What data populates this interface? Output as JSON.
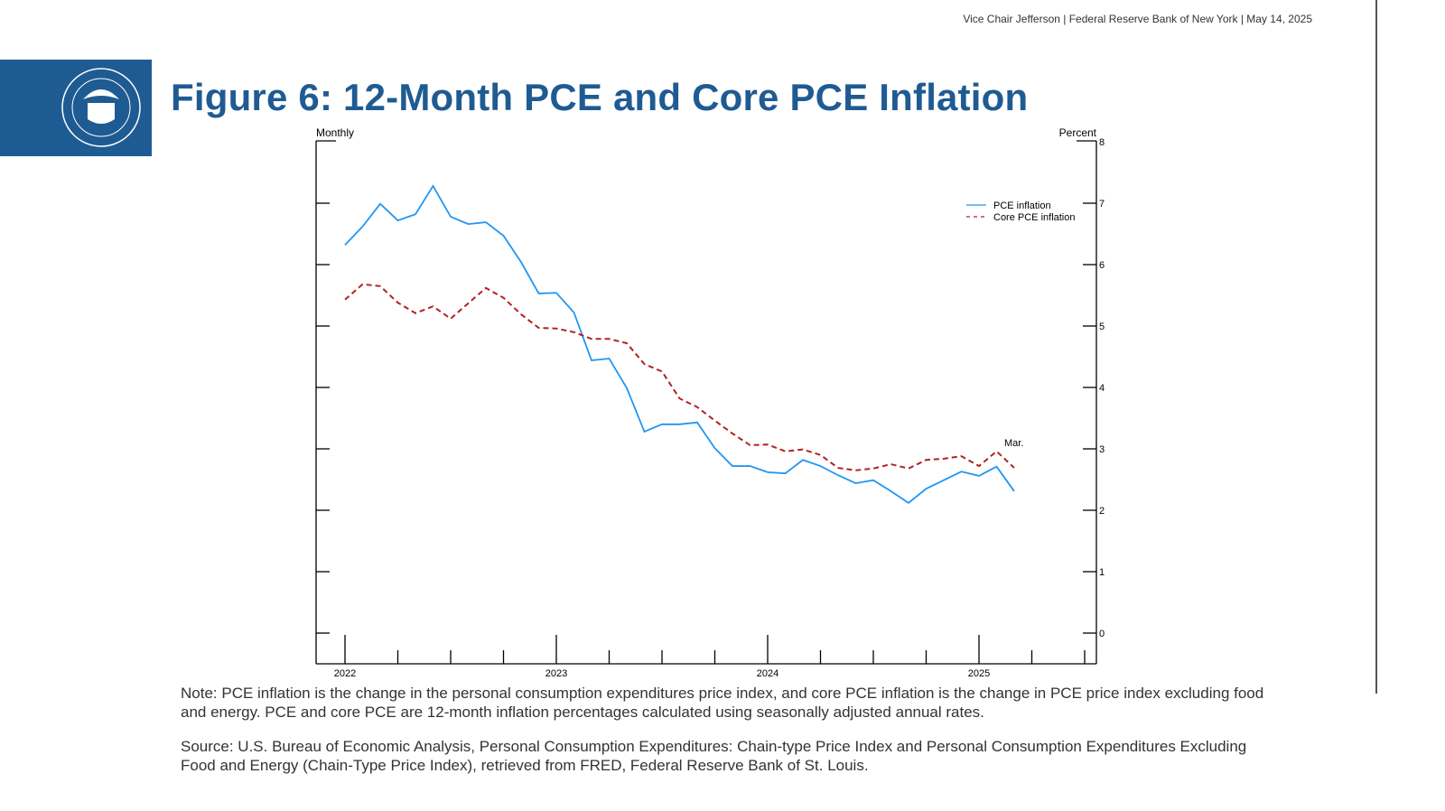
{
  "header": {
    "text": "Vice Chair Jefferson | Federal Reserve Bank of New York | May 14, 2025"
  },
  "logo": {
    "text": "BOARD OF GOVERNORS OF THE FEDERAL RESERVE SYSTEM"
  },
  "title": "Figure 6: 12-Month PCE and Core PCE Inflation",
  "note": "Note: PCE inflation is the change in the personal consumption expenditures price index, and core PCE inflation is the change in PCE price index excluding food and energy. PCE and core PCE are 12-month inflation percentages calculated using seasonally adjusted annual rates.",
  "source": "Source: U.S. Bureau of Economic Analysis, Personal Consumption Expenditures: Chain-type Price Index and Personal Consumption Expenditures Excluding Food and Energy (Chain-Type Price Index), retrieved from FRED, Federal Reserve Bank of St. Louis.",
  "chart_data": {
    "type": "line",
    "frequency_label": "Monthly",
    "ylabel": "Percent",
    "ylim": [
      0,
      8
    ],
    "yticks": [
      0,
      1,
      2,
      3,
      4,
      5,
      6,
      7,
      8
    ],
    "xlim": [
      "2021-11",
      "2025-06"
    ],
    "xtick_labels": [
      "2022",
      "2023",
      "2024",
      "2025"
    ],
    "annotation": "Mar.",
    "legend_position": "top-right",
    "grid": false,
    "x": [
      "2022-01",
      "2022-02",
      "2022-03",
      "2022-04",
      "2022-05",
      "2022-06",
      "2022-07",
      "2022-08",
      "2022-09",
      "2022-10",
      "2022-11",
      "2022-12",
      "2023-01",
      "2023-02",
      "2023-03",
      "2023-04",
      "2023-05",
      "2023-06",
      "2023-07",
      "2023-08",
      "2023-09",
      "2023-10",
      "2023-11",
      "2023-12",
      "2024-01",
      "2024-02",
      "2024-03",
      "2024-04",
      "2024-05",
      "2024-06",
      "2024-07",
      "2024-08",
      "2024-09",
      "2024-10",
      "2024-11",
      "2024-12",
      "2025-01",
      "2025-02",
      "2025-03"
    ],
    "series": [
      {
        "name": "PCE inflation",
        "color": "#2196f3",
        "style": "solid",
        "values": [
          6.32,
          6.62,
          6.99,
          6.72,
          6.82,
          7.28,
          6.78,
          6.66,
          6.69,
          6.47,
          6.04,
          5.53,
          5.54,
          5.22,
          4.44,
          4.47,
          3.99,
          3.28,
          3.4,
          3.4,
          3.43,
          3.01,
          2.72,
          2.72,
          2.62,
          2.6,
          2.82,
          2.72,
          2.57,
          2.44,
          2.49,
          2.31,
          2.12,
          2.35,
          2.49,
          2.63,
          2.56,
          2.71,
          2.31
        ]
      },
      {
        "name": "Core PCE inflation",
        "color": "#b22222",
        "style": "dashed",
        "values": [
          5.43,
          5.68,
          5.65,
          5.38,
          5.21,
          5.32,
          5.12,
          5.37,
          5.62,
          5.46,
          5.19,
          4.97,
          4.96,
          4.9,
          4.79,
          4.79,
          4.72,
          4.38,
          4.26,
          3.82,
          3.68,
          3.46,
          3.25,
          3.06,
          3.07,
          2.96,
          2.99,
          2.9,
          2.69,
          2.65,
          2.68,
          2.75,
          2.68,
          2.82,
          2.84,
          2.88,
          2.72,
          2.96,
          2.69
        ]
      }
    ]
  }
}
